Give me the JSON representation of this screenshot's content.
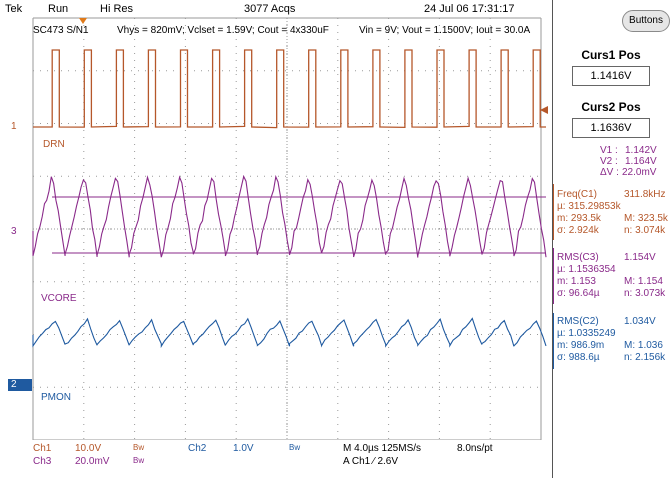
{
  "topbar": {
    "brand": "Tek",
    "run_state": "Run",
    "acq_mode": "Hi Res",
    "acqs": "3077 Acqs",
    "datetime": "24 Jul 06 17:31:17"
  },
  "screen_info": {
    "device": "SC473 S/N1",
    "params_left": "Vhys = 820mV; Vclset = 1.59V; Cout = 4x330uF",
    "params_right": "Vin = 9V; Vout = 1.1500V; Iout = 30.0A"
  },
  "channels": {
    "ch1_marker": "1",
    "ch3_marker": "3",
    "ch2_marker": "2",
    "drn_label": "DRN",
    "vcore_label": "VCORE",
    "pmon_label": "PMON"
  },
  "side_panel": {
    "buttons_label": "Buttons",
    "curs1_title": "Curs1 Pos",
    "curs1_value": "1.1416V",
    "curs2_title": "Curs2 Pos",
    "curs2_value": "1.1636V",
    "v1_label": "V1 :",
    "v1_value": "1.142V",
    "v2_label": "V2 :",
    "v2_value": "1.164V",
    "dv_label": "ΔV :",
    "dv_value": "22.0mV"
  },
  "measurements": [
    {
      "title": "Freq(C1)",
      "value": "311.8kHz",
      "mu": "µ: 315.29853k",
      "m": "m: 293.5k",
      "M": "M: 323.5k",
      "sigma": "σ: 2.924k",
      "n": "n: 3.074k"
    },
    {
      "title": "RMS(C3)",
      "value": "1.154V",
      "mu": "µ: 1.1536354",
      "m": "m: 1.153",
      "M": "M: 1.154",
      "sigma": "σ: 96.64µ",
      "n": "n: 3.073k"
    },
    {
      "title": "RMS(C2)",
      "value": "1.034V",
      "mu": "µ: 1.0335249",
      "m": "m: 986.9m",
      "M": "M: 1.036",
      "sigma": "σ: 988.6µ",
      "n": "n: 2.156k"
    }
  ],
  "bottom": {
    "ch1": "Ch1",
    "ch1_scale": "10.0V",
    "bw1": "Bw",
    "ch2": "Ch2",
    "ch2_scale": "1.0V",
    "bw2": "Bw",
    "ch3": "Ch3",
    "ch3_scale": "20.0mV",
    "bw3": "Bw",
    "timebase": "M 4.0µs 125MS/s",
    "pt": "8.0ns/pt",
    "trigger": "A  Ch1  ⁄  2.6V"
  },
  "colors": {
    "ch1": "#b5572a",
    "ch3": "#8a2a8a",
    "ch2": "#1f5aa0",
    "grid": "#9a9a9a"
  }
}
